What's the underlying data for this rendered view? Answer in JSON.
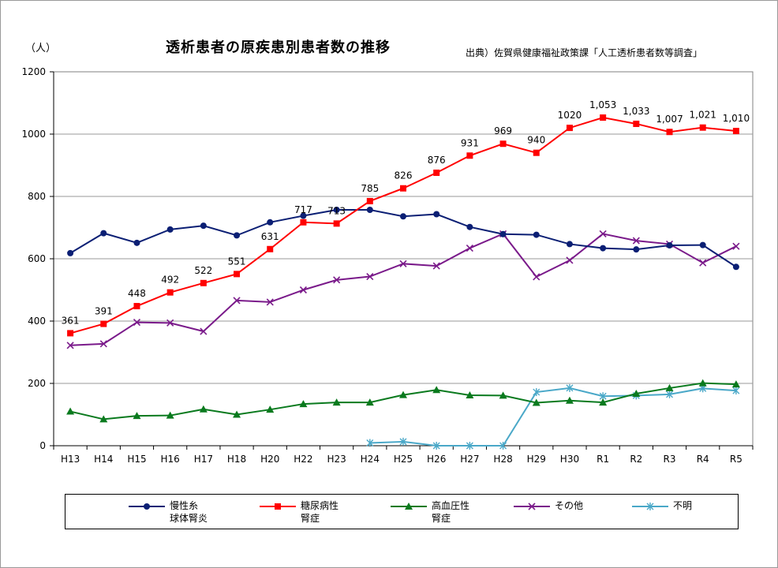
{
  "header": {
    "y_unit": "（人）",
    "title": "透析患者の原疾患別患者数の推移",
    "source": "出典）佐賀県健康福祉政策課「人工透析患者数等調査」"
  },
  "chart_data": {
    "type": "line",
    "title": "透析患者の原疾患別患者数の推移",
    "ylabel": "（人）",
    "xlabel": "",
    "ylim": [
      0,
      1200
    ],
    "yticks": [
      0,
      200,
      400,
      600,
      800,
      1000,
      1200
    ],
    "grid": true,
    "legend_position": "bottom",
    "categories": [
      "H13",
      "H14",
      "H15",
      "H16",
      "H17",
      "H18",
      "H20",
      "H22",
      "H23",
      "H24",
      "H25",
      "H26",
      "H27",
      "H28",
      "H29",
      "H30",
      "R1",
      "R2",
      "R3",
      "R4",
      "R5"
    ],
    "series": [
      {
        "name": "慢性糸球体腎炎",
        "legend_lines": [
          "慢性糸",
          "球体腎炎"
        ],
        "color": "#0b1f74",
        "marker": "circle",
        "values": [
          618,
          682,
          651,
          694,
          706,
          675,
          717,
          738,
          757,
          757,
          736,
          743,
          702,
          679,
          677,
          647,
          634,
          630,
          643,
          644,
          574
        ]
      },
      {
        "name": "糖尿病性腎症",
        "legend_lines": [
          "糖尿病性",
          "腎症"
        ],
        "color": "#ff0000",
        "marker": "square",
        "values": [
          361,
          391,
          448,
          492,
          522,
          551,
          631,
          717,
          713,
          785,
          826,
          876,
          931,
          969,
          940,
          1020,
          1053,
          1033,
          1007,
          1021,
          1010
        ],
        "labels": [
          "361",
          "391",
          "448",
          "492",
          "522",
          "551",
          "631",
          "717",
          "713",
          "785",
          "826",
          "876",
          "931",
          "969",
          "940",
          "1020",
          "1,053",
          "1,033",
          "1,007",
          "1,021",
          "1,010"
        ]
      },
      {
        "name": "高血圧性腎症",
        "legend_lines": [
          "高血圧性",
          "腎症"
        ],
        "color": "#0a7a1e",
        "marker": "triangle",
        "values": [
          110,
          85,
          96,
          97,
          117,
          100,
          116,
          134,
          139,
          139,
          163,
          179,
          162,
          161,
          138,
          145,
          139,
          167,
          185,
          201,
          197
        ]
      },
      {
        "name": "その他",
        "legend_lines": [
          "その他"
        ],
        "color": "#7a1a8a",
        "marker": "x",
        "values": [
          322,
          327,
          396,
          394,
          367,
          466,
          461,
          500,
          532,
          543,
          584,
          577,
          634,
          680,
          542,
          595,
          680,
          658,
          647,
          587,
          640
        ]
      },
      {
        "name": "不明",
        "legend_lines": [
          "不明"
        ],
        "color": "#4aa8c8",
        "marker": "asterisk",
        "values": [
          null,
          null,
          null,
          null,
          null,
          null,
          null,
          null,
          null,
          9,
          13,
          0,
          0,
          0,
          172,
          185,
          159,
          161,
          165,
          184,
          177
        ]
      }
    ]
  }
}
